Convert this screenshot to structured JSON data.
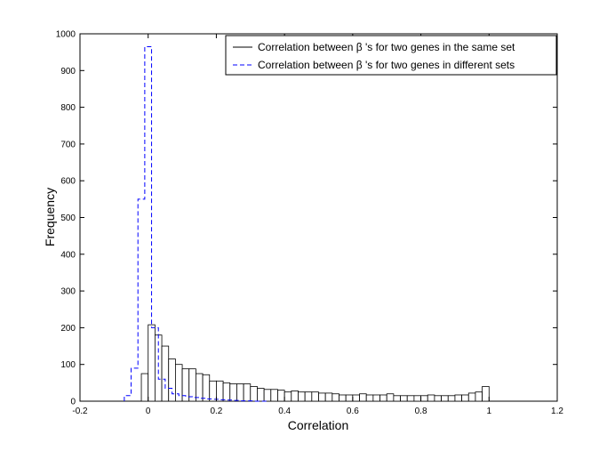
{
  "chart_data": {
    "type": "bar",
    "xlabel": "Correlation",
    "ylabel": "Frequency",
    "xlim": [
      -0.2,
      1.2
    ],
    "ylim": [
      0,
      1000
    ],
    "xticks": [
      -0.2,
      0,
      0.2,
      0.4,
      0.6,
      0.8,
      1,
      1.2
    ],
    "xtick_labels": [
      "-0.2",
      "0",
      "0.2",
      "0.4",
      "0.6",
      "0.8",
      "1",
      "1.2"
    ],
    "yticks": [
      0,
      100,
      200,
      300,
      400,
      500,
      600,
      700,
      800,
      900,
      1000
    ],
    "ytick_labels": [
      "0",
      "100",
      "200",
      "300",
      "400",
      "500",
      "600",
      "700",
      "800",
      "900",
      "1000"
    ],
    "grid": false,
    "legend_position": "top-right",
    "colors": {
      "same": "#000000",
      "different": "#0000ff"
    },
    "series": [
      {
        "name": "Correlation between β 's for two genes in the same set",
        "style": "histogram-bars",
        "bin_edges": [
          -0.02,
          0,
          0.02,
          0.04,
          0.06,
          0.08,
          0.1,
          0.12,
          0.14,
          0.16,
          0.18,
          0.2,
          0.22,
          0.24,
          0.26,
          0.28,
          0.3,
          0.32,
          0.34,
          0.36,
          0.38,
          0.4,
          0.42,
          0.44,
          0.46,
          0.48,
          0.5,
          0.52,
          0.54,
          0.56,
          0.58,
          0.6,
          0.62,
          0.64,
          0.66,
          0.68,
          0.7,
          0.72,
          0.74,
          0.76,
          0.78,
          0.8,
          0.82,
          0.84,
          0.86,
          0.88,
          0.9,
          0.92,
          0.94,
          0.96,
          0.98,
          1.0
        ],
        "counts": [
          75,
          208,
          180,
          150,
          115,
          100,
          88,
          88,
          75,
          72,
          55,
          55,
          50,
          47,
          47,
          47,
          40,
          35,
          32,
          32,
          30,
          25,
          28,
          25,
          25,
          25,
          22,
          22,
          20,
          17,
          17,
          17,
          20,
          17,
          17,
          17,
          20,
          15,
          15,
          15,
          15,
          15,
          17,
          15,
          15,
          15,
          17,
          17,
          22,
          25,
          40
        ]
      },
      {
        "name": "Correlation between β 's for two genes in different sets",
        "style": "dashed-stairs",
        "bin_edges": [
          -0.07,
          -0.05,
          -0.03,
          -0.01,
          0.01,
          0.03,
          0.05,
          0.07,
          0.09,
          0.11,
          0.13,
          0.15,
          0.17,
          0.19,
          0.21,
          0.23,
          0.25,
          0.27,
          0.29,
          0.31,
          0.33,
          0.35
        ],
        "counts": [
          15,
          90,
          550,
          965,
          200,
          60,
          35,
          20,
          15,
          12,
          10,
          8,
          6,
          5,
          4,
          3,
          2,
          1,
          1,
          0,
          0
        ]
      }
    ]
  }
}
